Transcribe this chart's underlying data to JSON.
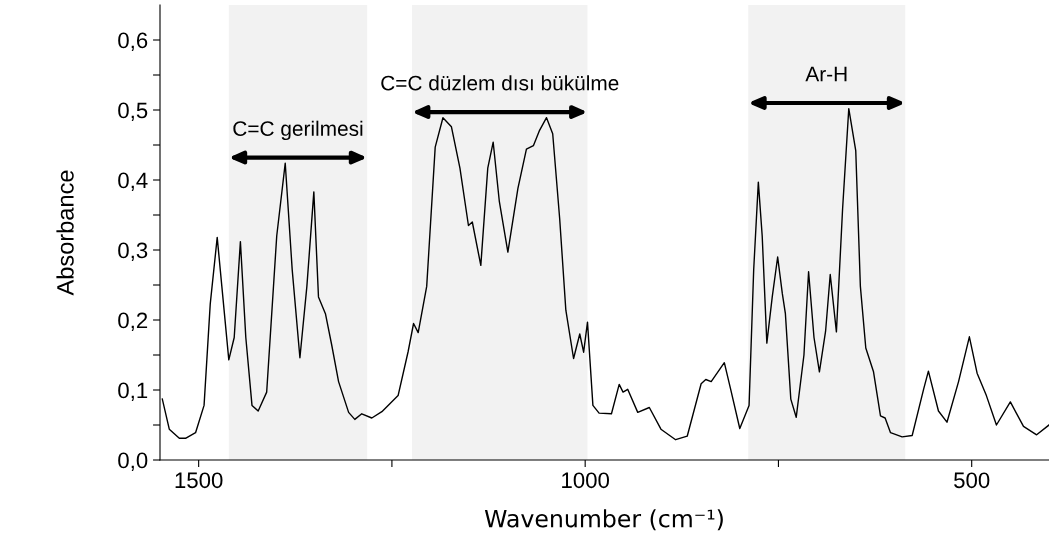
{
  "chart_data": {
    "type": "line",
    "xlabel": "Wavenumber (cm⁻¹)",
    "ylabel": "Absorbance",
    "x": [
      1547,
      1538,
      1525,
      1517,
      1504,
      1493,
      1485,
      1476,
      1470,
      1461,
      1454,
      1446,
      1439,
      1431,
      1423,
      1412,
      1399,
      1388,
      1379,
      1369,
      1360,
      1351,
      1345,
      1336,
      1328,
      1319,
      1306,
      1298,
      1289,
      1276,
      1263,
      1242,
      1229,
      1222,
      1216,
      1205,
      1194,
      1184,
      1173,
      1162,
      1151,
      1146,
      1135,
      1126,
      1119,
      1111,
      1100,
      1087,
      1076,
      1067,
      1059,
      1050,
      1042,
      1033,
      1025,
      1015,
      1007,
      1002,
      997,
      990,
      982,
      966,
      956,
      951,
      945,
      932,
      917,
      902,
      883,
      868,
      850,
      844,
      837,
      820,
      812,
      800,
      788,
      782,
      776,
      771,
      765,
      758,
      751,
      745,
      741,
      734,
      727,
      717,
      711,
      704,
      697,
      689,
      683,
      675,
      667,
      659,
      650,
      644,
      637,
      627,
      618,
      612,
      605,
      590,
      577,
      562,
      556,
      543,
      532,
      517,
      503,
      493,
      481,
      468,
      450,
      433,
      416,
      400
    ],
    "series": [
      {
        "color": "#000000",
        "values": [
          0.087,
          0.044,
          0.031,
          0.031,
          0.039,
          0.078,
          0.223,
          0.318,
          0.248,
          0.143,
          0.175,
          0.312,
          0.175,
          0.078,
          0.07,
          0.097,
          0.32,
          0.424,
          0.272,
          0.146,
          0.248,
          0.383,
          0.233,
          0.209,
          0.165,
          0.112,
          0.068,
          0.058,
          0.066,
          0.06,
          0.069,
          0.092,
          0.155,
          0.195,
          0.182,
          0.248,
          0.447,
          0.489,
          0.476,
          0.417,
          0.335,
          0.34,
          0.278,
          0.417,
          0.454,
          0.369,
          0.297,
          0.388,
          0.444,
          0.449,
          0.471,
          0.489,
          0.466,
          0.345,
          0.214,
          0.145,
          0.18,
          0.154,
          0.197,
          0.078,
          0.067,
          0.066,
          0.108,
          0.097,
          0.101,
          0.068,
          0.075,
          0.044,
          0.029,
          0.034,
          0.109,
          0.115,
          0.112,
          0.139,
          0.102,
          0.045,
          0.078,
          0.272,
          0.397,
          0.32,
          0.167,
          0.233,
          0.29,
          0.238,
          0.209,
          0.087,
          0.061,
          0.15,
          0.269,
          0.175,
          0.126,
          0.184,
          0.265,
          0.183,
          0.359,
          0.502,
          0.442,
          0.248,
          0.16,
          0.126,
          0.063,
          0.06,
          0.039,
          0.033,
          0.035,
          0.102,
          0.127,
          0.07,
          0.054,
          0.112,
          0.176,
          0.124,
          0.092,
          0.05,
          0.083,
          0.048,
          0.036,
          0.05
        ]
      }
    ],
    "xlim": [
      1550,
      400
    ],
    "xticks": [
      1500,
      {
        "value": 1250,
        "label": null
      },
      1000,
      {
        "value": 750,
        "label": null
      },
      500
    ],
    "ylim": [
      0,
      0.65
    ],
    "yticks": [
      {
        "value": 0.0,
        "label": "0,0"
      },
      {
        "value": 0.05,
        "label": null
      },
      {
        "value": 0.1,
        "label": "0,1"
      },
      {
        "value": 0.15,
        "label": null
      },
      {
        "value": 0.2,
        "label": "0,2"
      },
      {
        "value": 0.25,
        "label": null
      },
      {
        "value": 0.3,
        "label": "0,3"
      },
      {
        "value": 0.35,
        "label": null
      },
      {
        "value": 0.4,
        "label": "0,4"
      },
      {
        "value": 0.45,
        "label": null
      },
      {
        "value": 0.5,
        "label": "0,5"
      },
      {
        "value": 0.55,
        "label": null
      },
      {
        "value": 0.6,
        "label": "0,6"
      }
    ],
    "bands": [
      {
        "axis": "x",
        "from": 1461,
        "to": 1282,
        "label": "C=C gerilmesi",
        "color": "#f2f2f2"
      },
      {
        "axis": "x",
        "from": 1224,
        "to": 997,
        "label": "C=C düzlem dısı bükülme",
        "color": "#f2f2f2"
      },
      {
        "axis": "x",
        "from": 789,
        "to": 586,
        "label": "Ar-H",
        "color": "#f2f2f2"
      }
    ],
    "grid": false,
    "legend": false
  }
}
